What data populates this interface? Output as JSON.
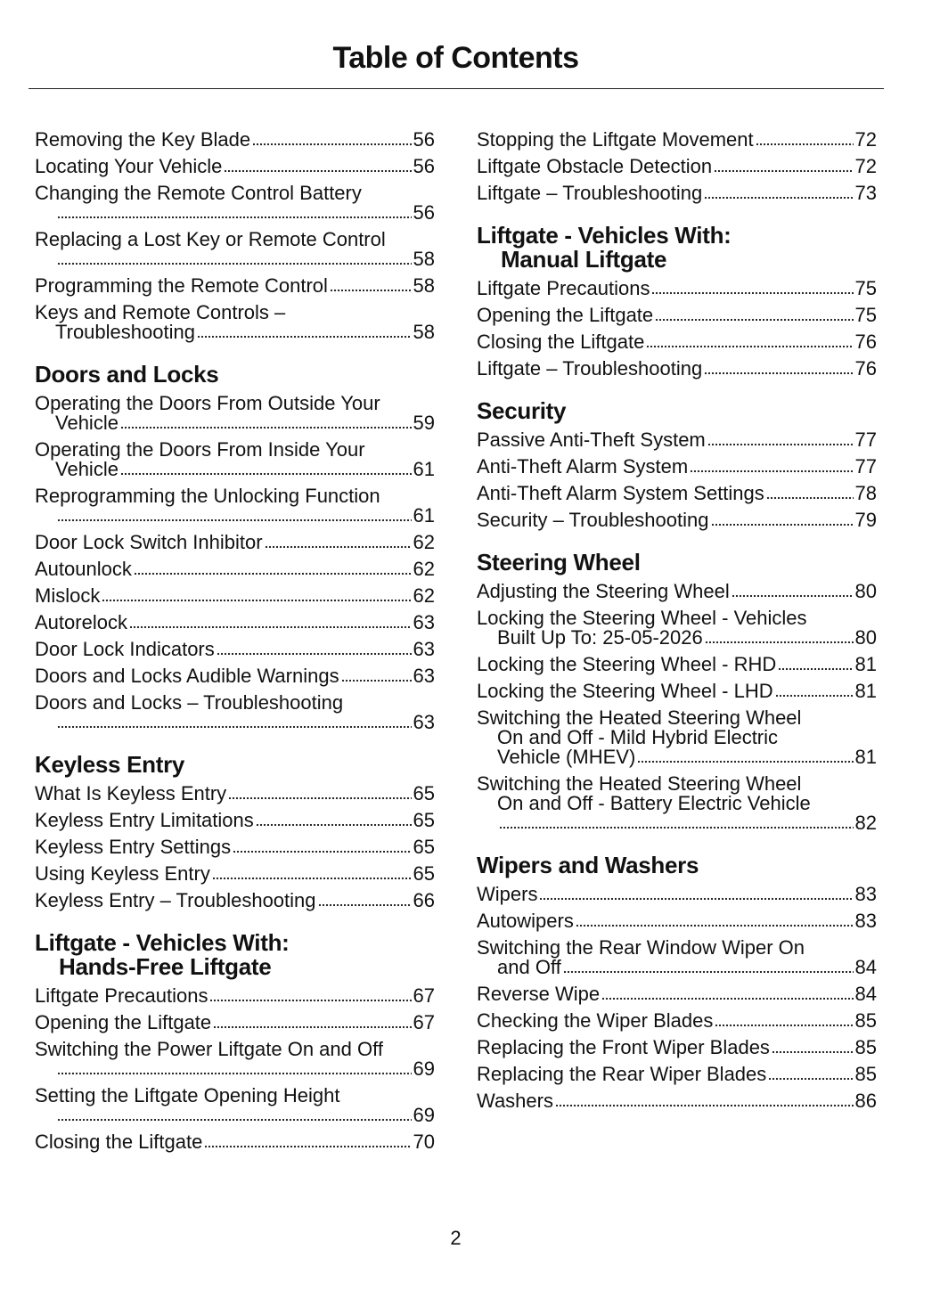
{
  "title": "Table of Contents",
  "page_number": "2",
  "columns": [
    [
      {
        "heading": [],
        "entries": [
          {
            "lines": [
              "Removing the Key Blade"
            ],
            "page": "56"
          },
          {
            "lines": [
              "Locating Your Vehicle"
            ],
            "page": "56"
          },
          {
            "lines": [
              "Changing the Remote Control Battery",
              ""
            ],
            "page": "56"
          },
          {
            "lines": [
              "Replacing a Lost Key or Remote Control",
              ""
            ],
            "page": "58"
          },
          {
            "lines": [
              "Programming the Remote Control"
            ],
            "page": "58"
          },
          {
            "lines": [
              "Keys and Remote Controls –",
              "Troubleshooting"
            ],
            "page": "58"
          }
        ]
      },
      {
        "heading": [
          "Doors and Locks"
        ],
        "entries": [
          {
            "lines": [
              "Operating the Doors From Outside Your",
              "Vehicle"
            ],
            "page": "59"
          },
          {
            "lines": [
              "Operating the Doors From Inside Your",
              "Vehicle"
            ],
            "page": "61"
          },
          {
            "lines": [
              "Reprogramming the Unlocking Function",
              ""
            ],
            "page": "61"
          },
          {
            "lines": [
              "Door Lock Switch Inhibitor"
            ],
            "page": "62"
          },
          {
            "lines": [
              "Autounlock"
            ],
            "page": "62"
          },
          {
            "lines": [
              "Mislock"
            ],
            "page": "62"
          },
          {
            "lines": [
              "Autorelock"
            ],
            "page": "63"
          },
          {
            "lines": [
              "Door Lock Indicators"
            ],
            "page": "63"
          },
          {
            "lines": [
              "Doors and Locks Audible Warnings"
            ],
            "page": "63"
          },
          {
            "lines": [
              "Doors and Locks – Troubleshooting",
              ""
            ],
            "page": "63"
          }
        ]
      },
      {
        "heading": [
          "Keyless Entry"
        ],
        "entries": [
          {
            "lines": [
              "What Is Keyless Entry"
            ],
            "page": "65"
          },
          {
            "lines": [
              "Keyless Entry Limitations"
            ],
            "page": "65"
          },
          {
            "lines": [
              "Keyless Entry Settings"
            ],
            "page": "65"
          },
          {
            "lines": [
              "Using Keyless Entry"
            ],
            "page": "65"
          },
          {
            "lines": [
              "Keyless Entry – Troubleshooting"
            ],
            "page": "66"
          }
        ]
      },
      {
        "heading": [
          "Liftgate - Vehicles With:",
          "Hands-Free Liftgate"
        ],
        "entries": [
          {
            "lines": [
              "Liftgate Precautions"
            ],
            "page": "67"
          },
          {
            "lines": [
              "Opening the Liftgate"
            ],
            "page": "67"
          },
          {
            "lines": [
              "Switching the Power Liftgate On and Off",
              ""
            ],
            "page": "69"
          },
          {
            "lines": [
              "Setting the Liftgate Opening Height",
              ""
            ],
            "page": "69"
          },
          {
            "lines": [
              "Closing the Liftgate"
            ],
            "page": "70"
          }
        ]
      }
    ],
    [
      {
        "heading": [],
        "entries": [
          {
            "lines": [
              "Stopping the Liftgate Movement"
            ],
            "page": "72"
          },
          {
            "lines": [
              "Liftgate Obstacle Detection"
            ],
            "page": "72"
          },
          {
            "lines": [
              "Liftgate – Troubleshooting"
            ],
            "page": "73"
          }
        ]
      },
      {
        "heading": [
          "Liftgate - Vehicles With:",
          "Manual Liftgate"
        ],
        "entries": [
          {
            "lines": [
              "Liftgate Precautions"
            ],
            "page": "75"
          },
          {
            "lines": [
              "Opening the Liftgate"
            ],
            "page": "75"
          },
          {
            "lines": [
              "Closing the Liftgate"
            ],
            "page": "76"
          },
          {
            "lines": [
              "Liftgate – Troubleshooting"
            ],
            "page": "76"
          }
        ]
      },
      {
        "heading": [
          "Security"
        ],
        "entries": [
          {
            "lines": [
              "Passive Anti-Theft System"
            ],
            "page": "77"
          },
          {
            "lines": [
              "Anti-Theft Alarm System"
            ],
            "page": "77"
          },
          {
            "lines": [
              "Anti-Theft Alarm System Settings"
            ],
            "page": "78"
          },
          {
            "lines": [
              "Security – Troubleshooting"
            ],
            "page": "79"
          }
        ]
      },
      {
        "heading": [
          "Steering Wheel"
        ],
        "entries": [
          {
            "lines": [
              "Adjusting the Steering Wheel"
            ],
            "page": "80"
          },
          {
            "lines": [
              "Locking the Steering Wheel - Vehicles",
              "Built Up To: 25-05-2026"
            ],
            "page": "80"
          },
          {
            "lines": [
              "Locking the Steering Wheel - RHD"
            ],
            "page": "81"
          },
          {
            "lines": [
              "Locking the Steering Wheel - LHD"
            ],
            "page": "81"
          },
          {
            "lines": [
              "Switching the Heated Steering Wheel",
              "On and Off - Mild Hybrid Electric",
              "Vehicle (MHEV)"
            ],
            "page": "81"
          },
          {
            "lines": [
              "Switching the Heated Steering Wheel",
              "On and Off - Battery Electric Vehicle",
              ""
            ],
            "page": "82"
          }
        ]
      },
      {
        "heading": [
          "Wipers and Washers"
        ],
        "entries": [
          {
            "lines": [
              "Wipers"
            ],
            "page": "83"
          },
          {
            "lines": [
              "Autowipers"
            ],
            "page": "83"
          },
          {
            "lines": [
              "Switching the Rear Window Wiper On",
              "and Off"
            ],
            "page": "84"
          },
          {
            "lines": [
              "Reverse Wipe"
            ],
            "page": "84"
          },
          {
            "lines": [
              "Checking the Wiper Blades"
            ],
            "page": "85"
          },
          {
            "lines": [
              "Replacing the Front Wiper Blades"
            ],
            "page": "85"
          },
          {
            "lines": [
              "Replacing the Rear Wiper Blades"
            ],
            "page": "85"
          },
          {
            "lines": [
              "Washers"
            ],
            "page": "86"
          }
        ]
      }
    ]
  ]
}
